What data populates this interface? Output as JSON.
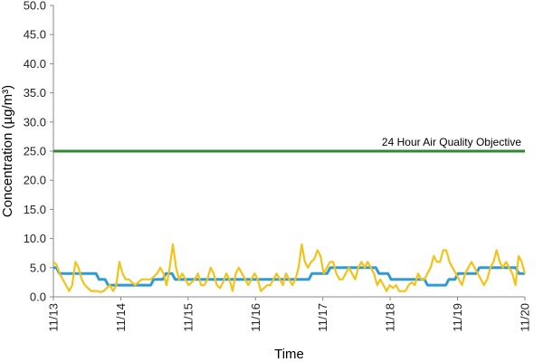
{
  "chart_data": {
    "type": "line",
    "ylabel": "Concentration (µg/m³)",
    "xlabel": "Time",
    "ylim": [
      0,
      50
    ],
    "y_ticks": [
      "0.0",
      "5.0",
      "10.0",
      "15.0",
      "20.0",
      "25.0",
      "30.0",
      "35.0",
      "40.0",
      "45.0",
      "50.0"
    ],
    "x_tick_labels": [
      "11/13",
      "11/14",
      "11/15",
      "11/16",
      "11/17",
      "11/18",
      "11/19",
      "11/20"
    ],
    "xlim_days": [
      0,
      7
    ],
    "grid": false,
    "colors": {
      "hourly": "#f2c318",
      "rolling": "#2e9bd6",
      "objective": "#2f8a2f"
    },
    "objective": {
      "value": 25,
      "label": "24 Hour Air Quality Objective"
    },
    "series": [
      {
        "values": [
          6,
          5.5,
          4,
          3,
          2,
          1,
          2,
          6,
          5,
          3,
          2,
          1.5,
          1,
          1,
          1,
          0.8,
          1,
          1.5,
          2,
          1,
          2,
          6,
          4,
          3,
          3,
          2.5,
          2,
          2.5,
          3,
          3,
          3,
          3,
          3.5,
          4,
          5,
          4,
          2,
          5,
          9,
          5,
          3,
          4,
          3,
          2,
          2.5,
          3,
          4,
          2,
          2,
          3,
          5,
          4,
          2,
          1.5,
          2.5,
          4,
          3,
          1,
          4,
          5,
          4,
          3,
          2,
          3,
          4,
          3,
          1,
          1.5,
          2,
          2,
          3,
          4,
          3,
          2,
          4,
          3,
          2,
          3,
          5,
          9,
          6,
          5,
          6,
          6.5,
          8,
          7,
          4,
          5,
          6,
          6,
          4,
          3,
          3,
          4,
          5,
          4,
          3,
          5,
          6,
          5,
          6,
          5,
          4,
          2,
          3,
          2,
          1,
          2,
          1.5,
          2,
          1,
          1,
          1,
          2,
          2.5,
          2,
          4,
          3,
          3,
          4,
          5,
          7,
          6,
          6,
          8,
          8,
          6,
          5,
          4,
          3,
          2,
          4,
          5,
          6,
          5,
          4,
          3,
          2,
          3,
          5,
          6,
          8,
          6,
          5,
          6,
          5,
          4,
          2,
          7,
          6,
          4
        ]
      },
      {
        "values": [
          5,
          5,
          4,
          4,
          4,
          4,
          4,
          4,
          4,
          4,
          4,
          4,
          4,
          4,
          4,
          3,
          3,
          3,
          2,
          2,
          2,
          2,
          2,
          2,
          2,
          2,
          2,
          2,
          2,
          2,
          2,
          2,
          2,
          3,
          3,
          3,
          3,
          4,
          4,
          4,
          3,
          3,
          3,
          3,
          3,
          3,
          3,
          3,
          3,
          3,
          3,
          3,
          3,
          3,
          3,
          3,
          3,
          3,
          3,
          3,
          3,
          3,
          3,
          3,
          3,
          3,
          3,
          3,
          3,
          3,
          3,
          3,
          3,
          3,
          3,
          3,
          3,
          3,
          3,
          3,
          3,
          3,
          3,
          3,
          3,
          4,
          4,
          4,
          4,
          4,
          4,
          5,
          5,
          5,
          5,
          5,
          5,
          5,
          5,
          5,
          5,
          5,
          5,
          5,
          5,
          5,
          5,
          4,
          4,
          4,
          4,
          3,
          3,
          3,
          3,
          3,
          3,
          3,
          3,
          3,
          3,
          3,
          3,
          2,
          2,
          2,
          2,
          2,
          2,
          2,
          3,
          3,
          3,
          4,
          4,
          4,
          4,
          4,
          4,
          4,
          5,
          5,
          5,
          5,
          5,
          5,
          5,
          5,
          5,
          5,
          5,
          5,
          5,
          4,
          4,
          4
        ]
      }
    ]
  }
}
